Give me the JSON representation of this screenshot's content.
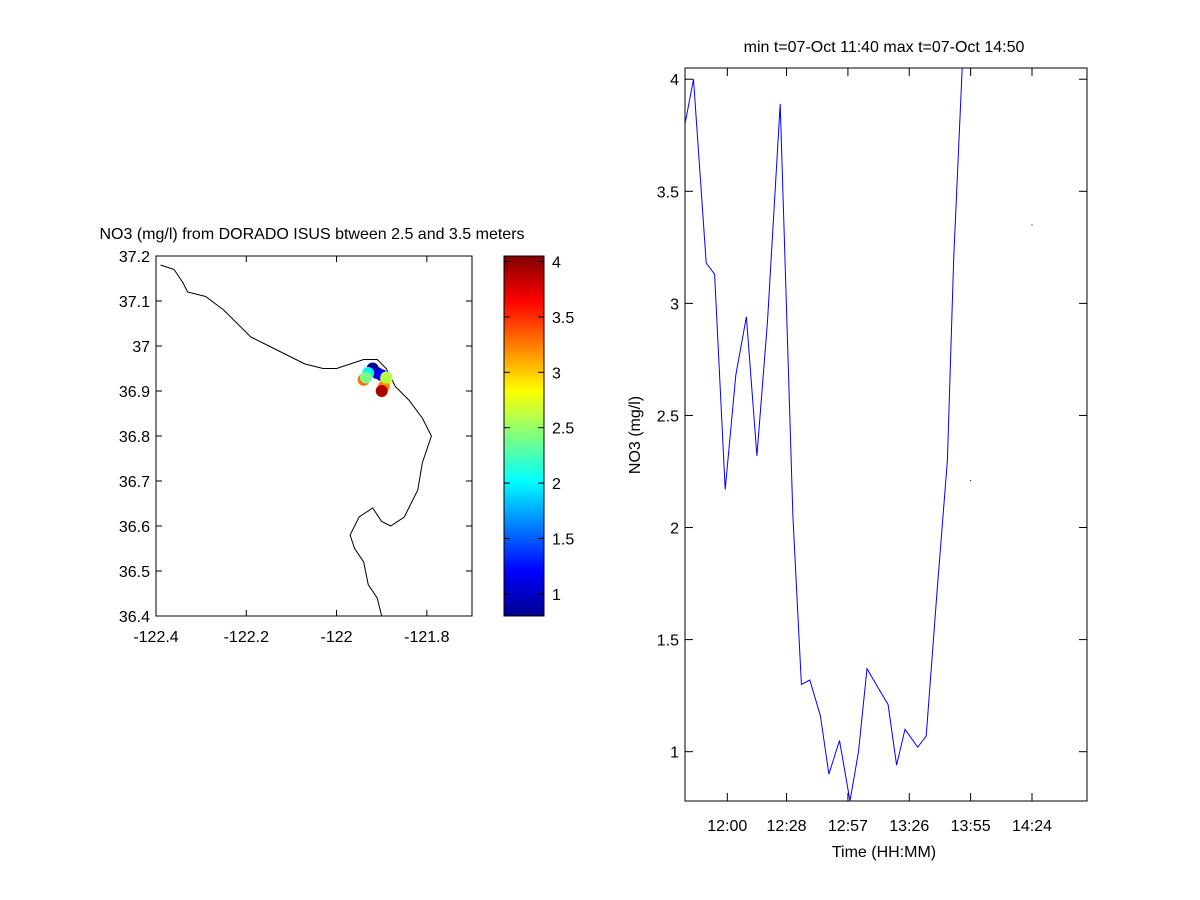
{
  "colors": {
    "axis": "#000000",
    "coast": "#000000",
    "series_line": "#0000ff",
    "background": "#ffffff"
  },
  "chart_data": [
    {
      "type": "scatter",
      "title": "NO3 (mg/l) from DORADO ISUS btween 2.5 and 3.5 meters",
      "xlabel": "",
      "ylabel": "",
      "xlim": [
        -122.4,
        -121.7
      ],
      "ylim": [
        36.4,
        37.2
      ],
      "x_ticks": [
        "-122.4",
        "-122.2",
        "-122",
        "-121.8"
      ],
      "y_ticks": [
        "36.4",
        "36.5",
        "36.6",
        "36.7",
        "36.8",
        "36.9",
        "37",
        "37.1",
        "37.2"
      ],
      "colorscale": "jet",
      "colorbar": {
        "range": [
          0.8,
          4.05
        ],
        "ticks": [
          "1",
          "1.5",
          "2",
          "2.5",
          "3",
          "3.5",
          "4"
        ]
      },
      "coastline": [
        [
          -122.39,
          37.18
        ],
        [
          -122.36,
          37.17
        ],
        [
          -122.34,
          37.14
        ],
        [
          -122.33,
          37.12
        ],
        [
          -122.29,
          37.11
        ],
        [
          -122.25,
          37.08
        ],
        [
          -122.22,
          37.05
        ],
        [
          -122.19,
          37.02
        ],
        [
          -122.15,
          37.0
        ],
        [
          -122.11,
          36.98
        ],
        [
          -122.07,
          36.96
        ],
        [
          -122.03,
          36.95
        ],
        [
          -122.0,
          36.95
        ],
        [
          -121.97,
          36.96
        ],
        [
          -121.94,
          36.97
        ],
        [
          -121.91,
          36.97
        ],
        [
          -121.89,
          36.95
        ],
        [
          -121.87,
          36.91
        ],
        [
          -121.84,
          36.88
        ],
        [
          -121.81,
          36.84
        ],
        [
          -121.79,
          36.8
        ],
        [
          -121.81,
          36.74
        ],
        [
          -121.82,
          36.68
        ],
        [
          -121.85,
          36.62
        ],
        [
          -121.88,
          36.6
        ],
        [
          -121.9,
          36.61
        ],
        [
          -121.92,
          36.64
        ],
        [
          -121.95,
          36.62
        ],
        [
          -121.97,
          36.58
        ],
        [
          -121.96,
          36.55
        ],
        [
          -121.94,
          36.52
        ],
        [
          -121.93,
          36.47
        ],
        [
          -121.91,
          36.44
        ],
        [
          -121.9,
          36.4
        ]
      ],
      "points": [
        {
          "lon": -121.92,
          "lat": 36.95,
          "value": 0.85
        },
        {
          "lon": -121.91,
          "lat": 36.94,
          "value": 1.0
        },
        {
          "lon": -121.9,
          "lat": 36.935,
          "value": 1.2
        },
        {
          "lon": -121.93,
          "lat": 36.94,
          "value": 2.0
        },
        {
          "lon": -121.94,
          "lat": 36.925,
          "value": 3.3
        },
        {
          "lon": -121.935,
          "lat": 36.93,
          "value": 2.4
        },
        {
          "lon": -121.89,
          "lat": 36.925,
          "value": 2.8
        },
        {
          "lon": -121.895,
          "lat": 36.91,
          "value": 3.2
        },
        {
          "lon": -121.9,
          "lat": 36.9,
          "value": 3.9
        },
        {
          "lon": -121.89,
          "lat": 36.93,
          "value": 2.6
        }
      ]
    },
    {
      "type": "line",
      "title": "min t=07-Oct 11:40 max t=07-Oct 14:50",
      "xlabel": "Time (HH:MM)",
      "ylabel": "NO3 (mg/l)",
      "xlim": [
        "11:40",
        "14:50"
      ],
      "ylim": [
        0.78,
        4.05
      ],
      "x_ticks": [
        "12:00",
        "12:28",
        "12:57",
        "13:26",
        "13:55",
        "14:24"
      ],
      "y_ticks": [
        "1",
        "1.5",
        "2",
        "2.5",
        "3",
        "3.5",
        "4"
      ],
      "series": [
        {
          "x": [
            "11:40",
            "11:44",
            "11:50",
            "11:54",
            "11:59",
            "12:04",
            "12:09",
            "12:14",
            "12:19",
            "12:25",
            "12:31",
            "12:35",
            "12:39",
            "12:44",
            "12:48",
            "12:53",
            "12:58",
            "13:02",
            "13:06",
            "13:11",
            "13:16",
            "13:20",
            "13:24",
            "13:30",
            "13:34",
            "13:39",
            "13:44",
            "13:47",
            "13:51"
          ],
          "values": [
            3.8,
            4.0,
            3.18,
            3.13,
            2.17,
            2.68,
            2.94,
            2.32,
            2.92,
            3.89,
            2.05,
            1.3,
            1.32,
            1.16,
            0.9,
            1.05,
            0.78,
            1.0,
            1.37,
            1.29,
            1.21,
            0.94,
            1.1,
            1.02,
            1.07,
            1.7,
            2.3,
            3.2,
            4.05
          ]
        }
      ],
      "stray_points": [
        {
          "x": "14:24",
          "y": 3.35
        },
        {
          "x": "13:55",
          "y": 2.21
        }
      ]
    }
  ]
}
